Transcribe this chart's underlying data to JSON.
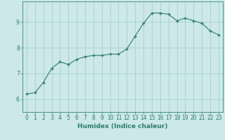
{
  "x": [
    0,
    1,
    2,
    3,
    4,
    5,
    6,
    7,
    8,
    9,
    10,
    11,
    12,
    13,
    14,
    15,
    16,
    17,
    18,
    19,
    20,
    21,
    22,
    23
  ],
  "y": [
    6.2,
    6.25,
    6.65,
    7.2,
    7.45,
    7.35,
    7.55,
    7.65,
    7.7,
    7.7,
    7.75,
    7.75,
    7.95,
    8.45,
    8.95,
    9.35,
    9.35,
    9.3,
    9.05,
    9.15,
    9.05,
    8.95,
    8.65,
    8.5
  ],
  "xlabel": "Humidex (Indice chaleur)",
  "xlim": [
    -0.5,
    23.5
  ],
  "ylim": [
    5.5,
    9.8
  ],
  "yticks": [
    6,
    7,
    8,
    9
  ],
  "xticks": [
    0,
    1,
    2,
    3,
    4,
    5,
    6,
    7,
    8,
    9,
    10,
    11,
    12,
    13,
    14,
    15,
    16,
    17,
    18,
    19,
    20,
    21,
    22,
    23
  ],
  "line_color": "#2e7d6e",
  "marker_color": "#2e7d6e",
  "bg_color": "#cce8e8",
  "grid_color": "#aacece",
  "label_color": "#2e7d6e",
  "tick_color": "#2e7d6e",
  "axis_color": "#4a9090",
  "xlabel_fontsize": 6.5,
  "tick_fontsize": 5.5
}
